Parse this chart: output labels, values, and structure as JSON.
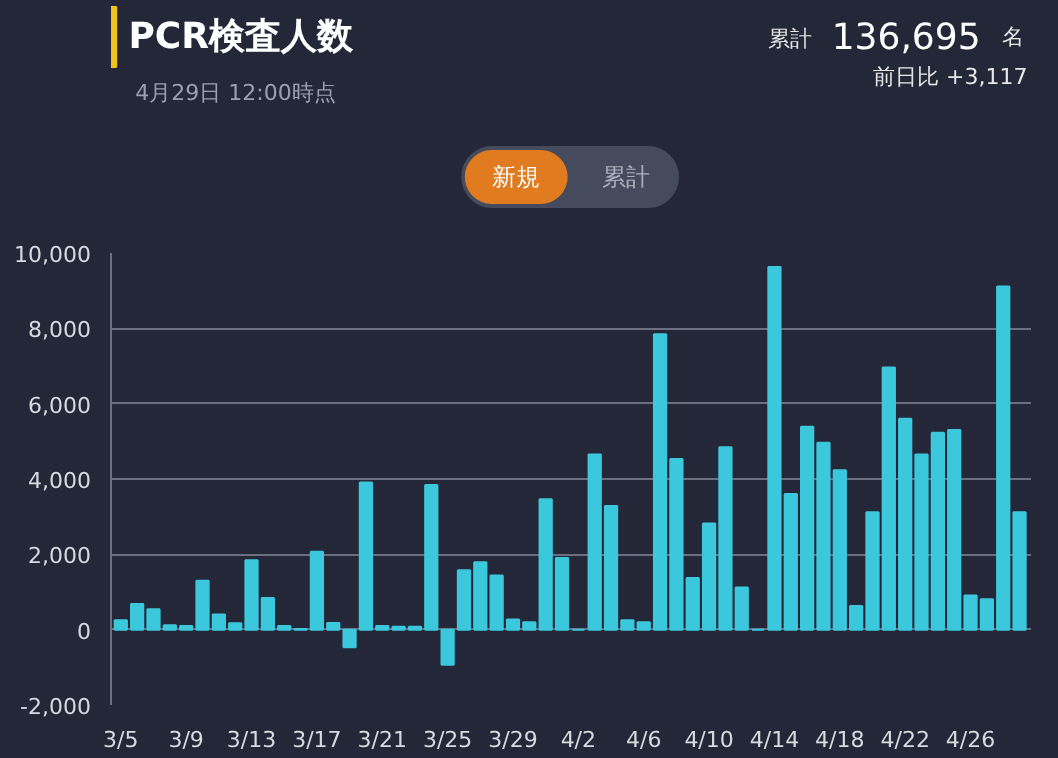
{
  "chart_data": {
    "type": "bar",
    "title": "PCR検査人数",
    "annotations": [
      "4月29日 12:00時点",
      "累計",
      "136,695",
      "名",
      "前日比 +3,117",
      "新規",
      "累計"
    ],
    "categories": [
      "3/5",
      null,
      null,
      null,
      "3/9",
      null,
      null,
      null,
      "3/13",
      null,
      null,
      null,
      "3/17",
      null,
      null,
      null,
      "3/21",
      null,
      null,
      null,
      "3/25",
      null,
      null,
      null,
      "3/29",
      null,
      null,
      null,
      "4/2",
      null,
      null,
      null,
      "4/6",
      null,
      null,
      null,
      "4/10",
      null,
      null,
      null,
      "4/14",
      null,
      null,
      null,
      "4/18",
      null,
      null,
      null,
      "4/22",
      null,
      null,
      null,
      "4/26",
      null,
      null,
      null
    ],
    "values": [
      250,
      680,
      540,
      120,
      100,
      1300,
      400,
      170,
      1840,
      840,
      100,
      20,
      2070,
      180,
      -470,
      3910,
      100,
      80,
      80,
      3840,
      -930,
      1580,
      1790,
      1440,
      270,
      200,
      3460,
      1900,
      0,
      4650,
      3280,
      250,
      200,
      7840,
      4530,
      1370,
      2820,
      4840,
      1120,
      0,
      9630,
      3600,
      5390,
      4960,
      4230,
      630,
      3120,
      6960,
      5600,
      4650,
      5230,
      5300,
      910,
      810,
      9110,
      3120
    ],
    "color": "#3cc8dc",
    "ylim": [
      -2000,
      10000
    ],
    "yticks": [
      {
        "value": -2000,
        "label": "-2,000"
      },
      0,
      {
        "value": 2000,
        "label": "2,000"
      },
      {
        "value": 4000,
        "label": "4,000"
      },
      {
        "value": 6000,
        "label": "6,000"
      },
      {
        "value": 8000,
        "label": "8,000"
      },
      {
        "value": 10000,
        "label": "10,000"
      }
    ],
    "grid": "y"
  }
}
